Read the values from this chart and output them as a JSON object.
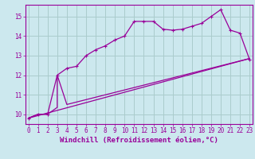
{
  "bg_color": "#cce8ee",
  "grid_color": "#aacccc",
  "line_color": "#990099",
  "series1_x": [
    0,
    1,
    2,
    3,
    4,
    5,
    6,
    7,
    8,
    9,
    10,
    11,
    12,
    13,
    14,
    15,
    16,
    17,
    18,
    19,
    20,
    21,
    22,
    23
  ],
  "series1_y": [
    9.8,
    10.0,
    10.0,
    12.0,
    12.35,
    12.45,
    13.0,
    13.3,
    13.5,
    13.8,
    14.0,
    14.75,
    14.75,
    14.75,
    14.35,
    14.3,
    14.35,
    14.5,
    14.65,
    15.0,
    15.35,
    14.3,
    14.15,
    12.8
  ],
  "series2_x": [
    0,
    1,
    2,
    3,
    3,
    4,
    23
  ],
  "series2_y": [
    9.8,
    10.0,
    10.0,
    10.35,
    12.0,
    10.5,
    12.85
  ],
  "series3_x": [
    0,
    23
  ],
  "series3_y": [
    9.8,
    12.85
  ],
  "xlim": [
    -0.3,
    23.3
  ],
  "ylim": [
    9.5,
    15.6
  ],
  "x_ticks": [
    0,
    1,
    2,
    3,
    4,
    5,
    6,
    7,
    8,
    9,
    10,
    11,
    12,
    13,
    14,
    15,
    16,
    17,
    18,
    19,
    20,
    21,
    22,
    23
  ],
  "y_ticks": [
    10,
    11,
    12,
    13,
    14,
    15
  ],
  "xlabel": "Windchill (Refroidissement éolien,°C)",
  "tick_fontsize": 5.5,
  "xlabel_fontsize": 6.5
}
